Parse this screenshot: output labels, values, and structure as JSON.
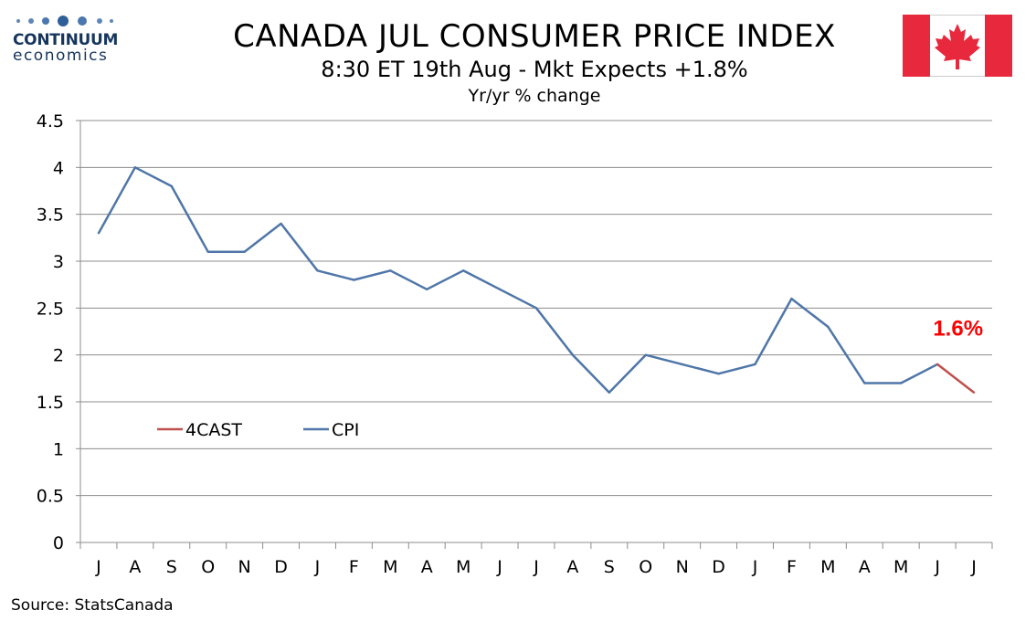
{
  "header": {
    "title": "CANADA JUL CONSUMER PRICE INDEX",
    "subtitle": "8:30 ET 19th Aug - Mkt Expects +1.8%",
    "units": "Yr/yr % change"
  },
  "logo": {
    "name": "CONTINUUM",
    "sub": "economics",
    "color": "#17365d"
  },
  "flag": {
    "country": "Canada",
    "red": "#e8283d",
    "icon": "maple-leaf-icon"
  },
  "source": "Source: StatsCanada",
  "chart_data": {
    "type": "line",
    "categories": [
      "J",
      "A",
      "S",
      "O",
      "N",
      "D",
      "J",
      "F",
      "M",
      "A",
      "M",
      "J",
      "J",
      "A",
      "S",
      "O",
      "N",
      "D",
      "J",
      "F",
      "M",
      "A",
      "M",
      "J",
      "J"
    ],
    "series": [
      {
        "name": "CPI",
        "color": "#4f76a8",
        "values": [
          3.3,
          4.0,
          3.8,
          3.1,
          3.1,
          3.4,
          2.9,
          2.8,
          2.9,
          2.7,
          2.9,
          2.7,
          2.5,
          2.0,
          1.6,
          2.0,
          1.9,
          1.8,
          1.9,
          2.6,
          2.3,
          1.7,
          1.7,
          1.9,
          null
        ]
      },
      {
        "name": "4CAST",
        "color": "#c0504d",
        "values": [
          null,
          null,
          null,
          null,
          null,
          null,
          null,
          null,
          null,
          null,
          null,
          null,
          null,
          null,
          null,
          null,
          null,
          null,
          null,
          null,
          null,
          null,
          null,
          1.9,
          1.6
        ]
      }
    ],
    "ylim": [
      0,
      4.5
    ],
    "yticks": [
      "0",
      "0.5",
      "1",
      "1.5",
      "2",
      "2.5",
      "3",
      "3.5",
      "4",
      "4.5"
    ],
    "grid": true,
    "legend_placement": "lower-left",
    "annotation": {
      "text": "1.6%",
      "color": "#ff0000"
    }
  }
}
